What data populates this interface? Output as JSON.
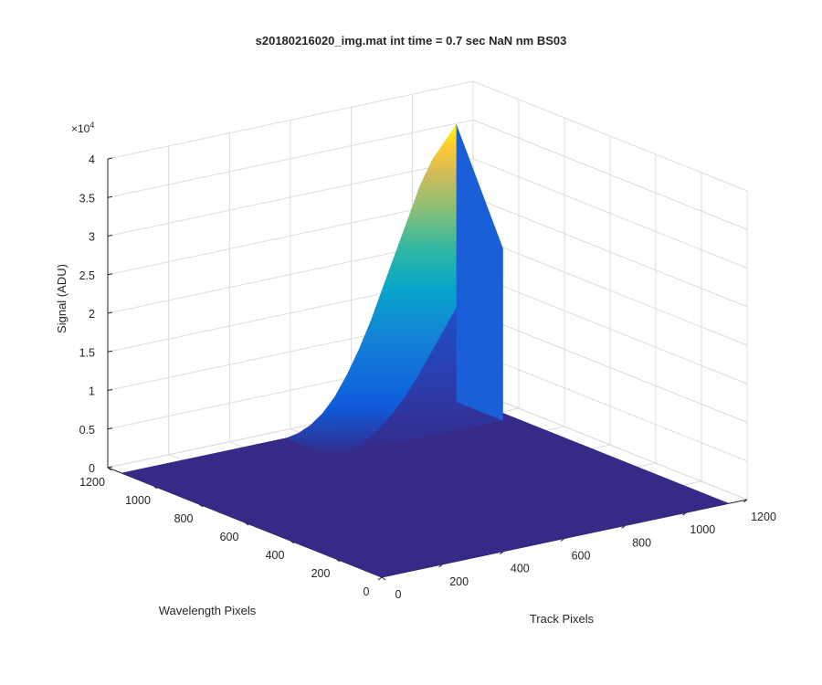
{
  "chart_data": {
    "type": "surface",
    "title": "s20180216020_img.mat int time = 0.7 sec  NaN nm BS03",
    "xlabel": "Track Pixels",
    "ylabel": "Wavelength Pixels",
    "zlabel": "Signal (ADU)",
    "z_exponent_base": "×10",
    "z_exponent_power": "4",
    "xlim": [
      0,
      1200
    ],
    "ylim": [
      0,
      1200
    ],
    "zlim": [
      0,
      40000
    ],
    "x_ticks": [
      "0",
      "200",
      "400",
      "600",
      "800",
      "1000",
      "1200"
    ],
    "y_ticks": [
      "0",
      "200",
      "400",
      "600",
      "800",
      "1000",
      "1200"
    ],
    "z_ticks": [
      "0",
      "0.5",
      "1",
      "1.5",
      "2",
      "2.5",
      "3",
      "3.5",
      "4"
    ],
    "grid": true,
    "colormap": [
      "#352a87",
      "#0f5cdd",
      "#1481d6",
      "#06a4ca",
      "#2eb7a4",
      "#87bf77",
      "#d1bb59",
      "#fec832",
      "#f9fb0e"
    ],
    "surface_profile": {
      "description_points_track_vs_peak": [
        {
          "track": 1100,
          "peak": 36000
        },
        {
          "track": 1060,
          "peak": 34000
        },
        {
          "track": 1020,
          "peak": 32000
        },
        {
          "track": 980,
          "peak": 29000
        },
        {
          "track": 940,
          "peak": 25000
        },
        {
          "track": 900,
          "peak": 21000
        },
        {
          "track": 860,
          "peak": 17000
        },
        {
          "track": 820,
          "peak": 13000
        },
        {
          "track": 780,
          "peak": 9500
        },
        {
          "track": 740,
          "peak": 6500
        },
        {
          "track": 700,
          "peak": 4000
        },
        {
          "track": 660,
          "peak": 2200
        },
        {
          "track": 620,
          "peak": 1000
        },
        {
          "track": 580,
          "peak": 300
        },
        {
          "track": 540,
          "peak": 0
        }
      ]
    }
  }
}
